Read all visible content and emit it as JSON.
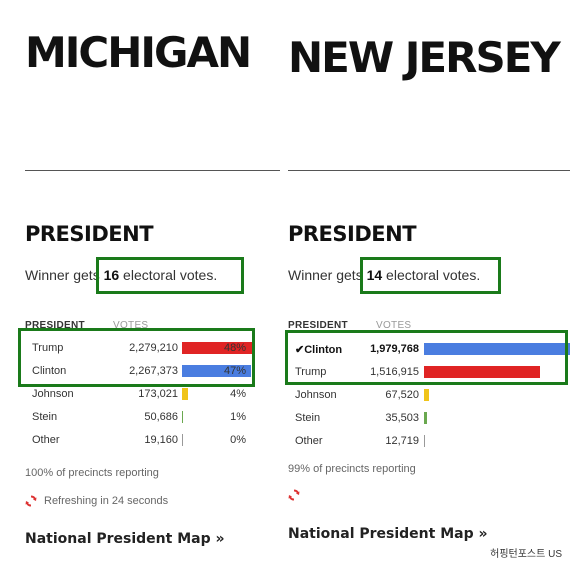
{
  "left": {
    "state": "MICHIGAN",
    "section": "PRESIDENT",
    "winner_prefix": "Winner gets ",
    "electoral_votes": "16",
    "winner_suffix": " electoral votes.",
    "col_president": "PRESIDENT",
    "col_votes": "VOTES",
    "rows": [
      {
        "name": "Trump",
        "votes": "2,279,210",
        "pct": "48%",
        "share": 0.48,
        "color": "#e02424"
      },
      {
        "name": "Clinton",
        "votes": "2,267,373",
        "pct": "47%",
        "share": 0.47,
        "color": "#4a7de0"
      },
      {
        "name": "Johnson",
        "votes": "173,021",
        "pct": "4%",
        "share": 0.04,
        "color": "#f0c419"
      },
      {
        "name": "Stein",
        "votes": "50,686",
        "pct": "1%",
        "share": 0.01,
        "color": "#6aa84f"
      },
      {
        "name": "Other",
        "votes": "19,160",
        "pct": "0%",
        "share": 0.004,
        "color": "#999999"
      }
    ],
    "precincts": "100% of precincts reporting",
    "refresh": "Refreshing in 24 seconds",
    "national_link": "National President Map »"
  },
  "right": {
    "state": "NEW JERSEY",
    "section": "PRESIDENT",
    "winner_prefix": "Winner gets ",
    "electoral_votes": "14",
    "winner_suffix": " electoral votes.",
    "col_president": "PRESIDENT",
    "col_votes": "VOTES",
    "rows": [
      {
        "name": "✔Clinton",
        "votes": "1,979,768",
        "share": 1.0,
        "color": "#4a7de0",
        "winner": true
      },
      {
        "name": "Trump",
        "votes": "1,516,915",
        "share": 0.77,
        "color": "#e02424"
      },
      {
        "name": "Johnson",
        "votes": "67,520",
        "share": 0.034,
        "color": "#f0c419"
      },
      {
        "name": "Stein",
        "votes": "35,503",
        "share": 0.018,
        "color": "#6aa84f"
      },
      {
        "name": "Other",
        "votes": "12,719",
        "share": 0.006,
        "color": "#999999"
      }
    ],
    "precincts": "99% of precincts reporting",
    "national_link": "National President Map »"
  },
  "credit": "허핑턴포스트 US",
  "highlight_color": "#1a7a1a"
}
